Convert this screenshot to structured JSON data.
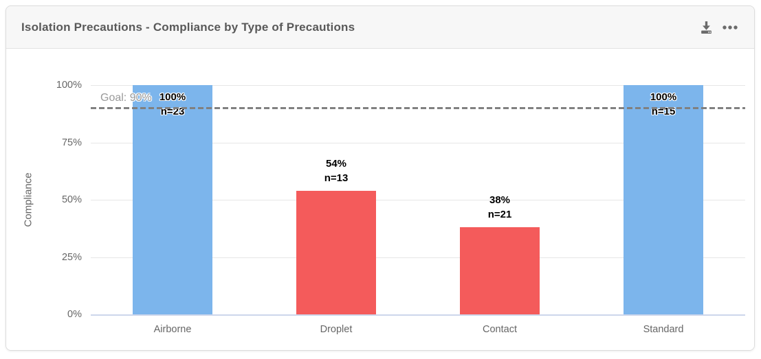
{
  "card": {
    "title": "Isolation Precautions - Compliance by Type of Precautions",
    "toolbar": {
      "download_icon": "download-icon",
      "context_menu_icon": "context-menu-icon"
    }
  },
  "chart_data": {
    "type": "bar",
    "title": "Isolation Precautions - Compliance by Type of Precautions",
    "categories": [
      "Airborne",
      "Droplet",
      "Contact",
      "Standard"
    ],
    "values": [
      100,
      54,
      38,
      100
    ],
    "counts": [
      23,
      13,
      21,
      15
    ],
    "bar_labels": [
      [
        "100%",
        "n=23"
      ],
      [
        "54%",
        "n=13"
      ],
      [
        "38%",
        "n=21"
      ],
      [
        "100%",
        "n=15"
      ]
    ],
    "bar_colors": [
      "#7cb5ec",
      "#f45b5b",
      "#f45b5b",
      "#7cb5ec"
    ],
    "xlabel": "",
    "ylabel": "Compliance",
    "ylim": [
      0,
      100
    ],
    "ytick_values": [
      0,
      25,
      50,
      75,
      100
    ],
    "ytick_labels": [
      "0%",
      "25%",
      "50%",
      "75%",
      "100%"
    ],
    "goal": {
      "value": 90,
      "label": "Goal: 90%"
    },
    "grid": true,
    "legend": "none",
    "colors": {
      "blue": "#7cb5ec",
      "red": "#f45b5b",
      "gridline": "#e6e6e6",
      "axis_line": "#ccd6eb",
      "goal_line": "#808080",
      "tick_text": "#666666"
    }
  }
}
